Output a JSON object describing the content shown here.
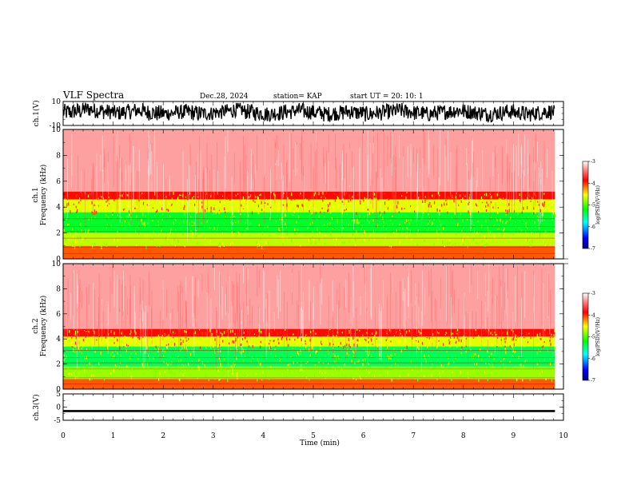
{
  "header": {
    "title": "VLF Spectra",
    "date": "Dec.28, 2024",
    "station": "station= KAP",
    "start": "start  UT  =   20: 10: 1"
  },
  "chart_data": [
    {
      "type": "line",
      "panel": "ch1-waveform",
      "ylabel": "ch.1(V)",
      "ylim": [
        -10,
        10
      ],
      "yticks": [
        10,
        -10
      ],
      "x": [
        0,
        0.2,
        0.4,
        0.6,
        0.8,
        1.0,
        1.2,
        1.4,
        1.6,
        1.8,
        2.0,
        2.2,
        2.4,
        2.6,
        2.8,
        3.0,
        3.2,
        3.4,
        3.6,
        3.8,
        4.0,
        4.2,
        4.4,
        4.6,
        4.8,
        5.0,
        5.2,
        5.4,
        5.6,
        5.8,
        6.0,
        6.2,
        6.4,
        6.6,
        6.8,
        7.0,
        7.2,
        7.4,
        7.6,
        7.8,
        8.0,
        8.2,
        8.4,
        8.6,
        8.8,
        9.0,
        9.2,
        9.4,
        9.6,
        9.8
      ],
      "envelope_max": [
        8,
        9,
        10,
        9,
        8,
        7,
        8,
        9,
        8,
        7,
        6,
        7,
        8,
        7,
        6,
        7,
        8,
        9,
        8,
        7,
        6,
        7,
        8,
        9,
        8,
        7,
        6,
        7,
        8,
        7,
        6,
        7,
        8,
        9,
        8,
        7,
        6,
        7,
        8,
        9,
        8,
        7,
        6,
        7,
        8,
        7,
        6,
        7,
        8,
        7
      ],
      "envelope_min": [
        -6,
        -5,
        -3,
        -4,
        -5,
        -6,
        -5,
        -4,
        -6,
        -7,
        -6,
        -5,
        -6,
        -7,
        -6,
        -5,
        -4,
        -3,
        -5,
        -6,
        -7,
        -6,
        -5,
        -4,
        -5,
        -6,
        -7,
        -6,
        -5,
        -6,
        -7,
        -6,
        -5,
        -4,
        -5,
        -6,
        -7,
        -6,
        -5,
        -4,
        -5,
        -6,
        -7,
        -6,
        -5,
        -6,
        -7,
        -6,
        -5,
        -6
      ],
      "color": "#000000"
    },
    {
      "type": "heatmap",
      "panel": "ch1-spectrogram",
      "ylabel": "ch.1\nFrequency (kHz)",
      "ylim": [
        0,
        10
      ],
      "yticks": [
        0,
        2,
        4,
        6,
        8,
        10
      ],
      "xlim": [
        0,
        10
      ],
      "data_end_x": 9.83,
      "colorbar": {
        "label": "log(PSD)(V²/Hz)",
        "ticks": [
          -3,
          -4,
          -5,
          -6,
          -7
        ],
        "range": [
          -7,
          -3
        ]
      },
      "bands": [
        {
          "from_khz": 5.2,
          "to_khz": 10,
          "level": -3.3
        },
        {
          "from_khz": 4.6,
          "to_khz": 5.2,
          "level": -3.9
        },
        {
          "from_khz": 3.6,
          "to_khz": 4.6,
          "level": -4.6
        },
        {
          "from_khz": 2.0,
          "to_khz": 3.6,
          "level": -5.3
        },
        {
          "from_khz": 1.0,
          "to_khz": 2.0,
          "level": -4.7
        },
        {
          "from_khz": 0.0,
          "to_khz": 1.0,
          "level": -4.1
        }
      ]
    },
    {
      "type": "heatmap",
      "panel": "ch2-spectrogram",
      "ylabel": "ch.2\nFrequency (kHz)",
      "ylim": [
        0,
        10
      ],
      "yticks": [
        0,
        2,
        4,
        6,
        8,
        10
      ],
      "xlim": [
        0,
        10
      ],
      "data_end_x": 9.83,
      "colorbar": {
        "label": "log(PSD)(V²/Hz)",
        "ticks": [
          -3,
          -4,
          -5,
          -6,
          -7
        ],
        "range": [
          -7,
          -3
        ]
      },
      "bands": [
        {
          "from_khz": 4.8,
          "to_khz": 10,
          "level": -3.3
        },
        {
          "from_khz": 4.2,
          "to_khz": 4.8,
          "level": -3.9
        },
        {
          "from_khz": 3.4,
          "to_khz": 4.2,
          "level": -4.6
        },
        {
          "from_khz": 1.8,
          "to_khz": 3.4,
          "level": -5.4
        },
        {
          "from_khz": 0.8,
          "to_khz": 1.8,
          "level": -4.8
        },
        {
          "from_khz": 0.0,
          "to_khz": 0.8,
          "level": -4.1
        }
      ]
    },
    {
      "type": "line",
      "panel": "ch3-waveform",
      "ylabel": "ch.3(V)",
      "ylim": [
        -5,
        5
      ],
      "yticks": [
        5,
        0,
        -5
      ],
      "level": -1.5,
      "amplitude": 0.4,
      "data_end_x": 9.83,
      "color": "#000000"
    }
  ],
  "xaxis": {
    "label": "Time (min)",
    "ticks": [
      "0",
      "1",
      "2",
      "3",
      "4",
      "5",
      "6",
      "7",
      "8",
      "9",
      "10"
    ],
    "xlim": [
      0,
      10
    ]
  }
}
